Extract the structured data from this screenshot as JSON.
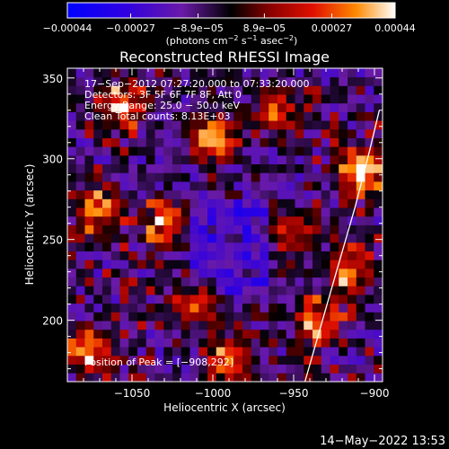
{
  "chart_data": {
    "type": "heatmap",
    "title": "Reconstructed RHESSI Image",
    "xlabel": "Heliocentric X (arcsec)",
    "ylabel": "Heliocentric Y (arcsec)",
    "xlim": [
      -1090,
      -895
    ],
    "ylim": [
      162,
      356
    ],
    "x_ticks": [
      -1050,
      -1000,
      -950,
      -900
    ],
    "x_tick_labels": [
      "−1050",
      "−1000",
      "−950",
      "−900"
    ],
    "y_ticks": [
      200,
      250,
      300,
      350
    ],
    "y_tick_labels": [
      "200",
      "250",
      "300",
      "350"
    ],
    "colorbar": {
      "range": [
        -0.00044,
        0.00044
      ],
      "ticks": [
        -0.00044,
        -0.00027,
        -8.9e-05,
        8.9e-05,
        0.00027,
        0.00044
      ],
      "tick_labels": [
        "−0.00044",
        "−0.00027",
        "−8.9e−05",
        "8.9e−05",
        "0.00027",
        "0.00044"
      ],
      "unit_parts": [
        "(photons cm",
        "−2",
        " s",
        "−1",
        " asec",
        "−2",
        ")"
      ]
    },
    "info_lines": [
      "17−Sep−2012 07:27:20.000 to 07:33:20.000",
      "Detectors: 3F 5F 6F 7F 8F, Att 0",
      "Energy Range: 25.0 − 50.0 keV",
      "Clean    Total counts: 8.13E+03"
    ],
    "peak_label": "Position of Peak = [−908,292]",
    "peak_position": [
      -908,
      292
    ],
    "bright_sources": [
      {
        "x": -908,
        "y": 292,
        "value": 0.00044
      },
      {
        "x": -1000,
        "y": 313,
        "value": 0.00036
      },
      {
        "x": -1055,
        "y": 333,
        "value": 0.0003
      },
      {
        "x": -990,
        "y": 175,
        "value": 0.0003
      },
      {
        "x": -935,
        "y": 200,
        "value": 0.00028
      },
      {
        "x": -1075,
        "y": 180,
        "value": 0.00026
      },
      {
        "x": -1070,
        "y": 268,
        "value": 0.00024
      },
      {
        "x": -1030,
        "y": 260,
        "value": 0.00022
      },
      {
        "x": -950,
        "y": 255,
        "value": 0.00022
      },
      {
        "x": -915,
        "y": 230,
        "value": 0.00025
      },
      {
        "x": -960,
        "y": 330,
        "value": 0.00018
      },
      {
        "x": -1010,
        "y": 210,
        "value": 0.0002
      }
    ],
    "limb_curve": [
      [
        -943,
        162
      ],
      [
        -935,
        190
      ],
      [
        -925,
        225
      ],
      [
        -912,
        270
      ],
      [
        -903,
        305
      ],
      [
        -897,
        330
      ]
    ],
    "timestamp": "14−May−2022 13:53"
  }
}
